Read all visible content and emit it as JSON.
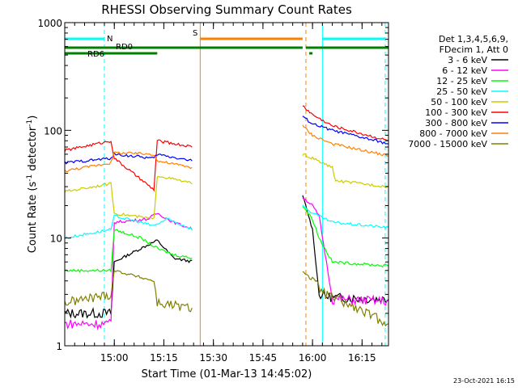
{
  "chart_data": {
    "type": "line",
    "title": "RHESSI Observing Summary Count Rates",
    "xlabel": "Start Time (01-Mar-13 14:45:02)",
    "ylabel": "Count Rate (s",
    "ylabel_sup1": "-1",
    "ylabel_mid": " detector",
    "ylabel_sup2": "-1",
    "ylabel_end": ")",
    "y_scale": "log",
    "ylim": [
      1,
      1000
    ],
    "xlim": [
      "14:45",
      "16:23"
    ],
    "x_ticks": [
      "15:00",
      "15:15",
      "15:30",
      "15:45",
      "16:00",
      "16:15"
    ],
    "y_ticks": [
      "1",
      "10",
      "100",
      "1000"
    ],
    "timestamp": "23-Oct-2021 16:15",
    "legend_header": [
      "Det 1,3,4,5,6,9,",
      "FDecim 1, Att 0"
    ],
    "legend_position": "right",
    "grid": false,
    "series": [
      {
        "name": "3 - 6 keV",
        "color": "#000000",
        "points": [
          [
            "14:45",
            2.0
          ],
          [
            "14:59",
            2.0
          ],
          [
            "15:00",
            6.0
          ],
          [
            "15:08",
            8.0
          ],
          [
            "15:13",
            9.5
          ],
          [
            "15:18",
            6.5
          ],
          [
            "15:24",
            6.0
          ],
          [
            "15:57",
            25.0
          ],
          [
            "16:00",
            12.0
          ],
          [
            "16:02",
            3.0
          ],
          [
            "16:06",
            2.8
          ],
          [
            "16:23",
            2.7
          ]
        ]
      },
      {
        "name": "6 - 12 keV",
        "color": "#ff00ff",
        "points": [
          [
            "14:45",
            1.6
          ],
          [
            "14:59",
            1.6
          ],
          [
            "15:00",
            14.0
          ],
          [
            "15:10",
            15.0
          ],
          [
            "15:13",
            17.0
          ],
          [
            "15:18",
            14.0
          ],
          [
            "15:24",
            12.0
          ],
          [
            "15:57",
            24.0
          ],
          [
            "16:00",
            20.0
          ],
          [
            "16:02",
            16.0
          ],
          [
            "16:06",
            2.7
          ],
          [
            "16:23",
            2.6
          ]
        ]
      },
      {
        "name": "12 - 25 keV",
        "color": "#00ff00",
        "points": [
          [
            "14:45",
            5.0
          ],
          [
            "14:59",
            5.0
          ],
          [
            "15:00",
            12.0
          ],
          [
            "15:08",
            10.0
          ],
          [
            "15:13",
            8.0
          ],
          [
            "15:18",
            7.0
          ],
          [
            "15:24",
            6.5
          ],
          [
            "15:57",
            20.0
          ],
          [
            "16:00",
            15.0
          ],
          [
            "16:02",
            10.0
          ],
          [
            "16:06",
            6.0
          ],
          [
            "16:23",
            5.5
          ]
        ]
      },
      {
        "name": "25 - 50 keV",
        "color": "#00ffff",
        "points": [
          [
            "14:45",
            10.0
          ],
          [
            "14:59",
            12.0
          ],
          [
            "15:00",
            16.0
          ],
          [
            "15:08",
            14.0
          ],
          [
            "15:12",
            13.0
          ],
          [
            "15:16",
            15.0
          ],
          [
            "15:24",
            12.0
          ],
          [
            "15:57",
            20.0
          ],
          [
            "16:00",
            17.0
          ],
          [
            "16:06",
            14.0
          ],
          [
            "16:23",
            12.5
          ]
        ]
      },
      {
        "name": "50 - 100 keV",
        "color": "#cccc00",
        "points": [
          [
            "14:45",
            27.0
          ],
          [
            "14:59",
            32.0
          ],
          [
            "15:00",
            17.0
          ],
          [
            "15:12",
            15.0
          ],
          [
            "15:13",
            38.0
          ],
          [
            "15:24",
            32.0
          ],
          [
            "15:57",
            60.0
          ],
          [
            "16:00",
            55.0
          ],
          [
            "16:06",
            45.0
          ],
          [
            "16:07",
            34.0
          ],
          [
            "16:23",
            30.0
          ]
        ]
      },
      {
        "name": "100 - 300 keV",
        "color": "#ff0000",
        "points": [
          [
            "14:45",
            65.0
          ],
          [
            "14:59",
            80.0
          ],
          [
            "15:00",
            55.0
          ],
          [
            "15:12",
            28.0
          ],
          [
            "15:13",
            80.0
          ],
          [
            "15:24",
            70.0
          ],
          [
            "15:57",
            170.0
          ],
          [
            "16:00",
            140.0
          ],
          [
            "16:06",
            110.0
          ],
          [
            "16:23",
            80.0
          ]
        ]
      },
      {
        "name": "300 - 800 keV",
        "color": "#0000ff",
        "points": [
          [
            "14:45",
            50.0
          ],
          [
            "14:59",
            55.0
          ],
          [
            "15:00",
            60.0
          ],
          [
            "15:12",
            55.0
          ],
          [
            "15:13",
            60.0
          ],
          [
            "15:24",
            52.0
          ],
          [
            "15:57",
            135.0
          ],
          [
            "16:00",
            115.0
          ],
          [
            "16:06",
            100.0
          ],
          [
            "16:23",
            75.0
          ]
        ]
      },
      {
        "name": "800 - 7000 keV",
        "color": "#ff8000",
        "points": [
          [
            "14:45",
            42.0
          ],
          [
            "14:59",
            50.0
          ],
          [
            "15:00",
            62.0
          ],
          [
            "15:12",
            60.0
          ],
          [
            "15:13",
            52.0
          ],
          [
            "15:24",
            45.0
          ],
          [
            "15:57",
            110.0
          ],
          [
            "16:00",
            90.0
          ],
          [
            "16:06",
            75.0
          ],
          [
            "16:23",
            58.0
          ]
        ]
      },
      {
        "name": "7000 - 15000 keV",
        "color": "#808000",
        "points": [
          [
            "14:45",
            2.5
          ],
          [
            "14:59",
            3.0
          ],
          [
            "15:00",
            5.0
          ],
          [
            "15:12",
            4.0
          ],
          [
            "15:13",
            2.5
          ],
          [
            "15:24",
            2.2
          ],
          [
            "15:57",
            5.0
          ],
          [
            "16:00",
            4.0
          ],
          [
            "16:04",
            3.0
          ],
          [
            "16:23",
            1.6
          ]
        ]
      }
    ],
    "markers": {
      "dashed_cyan": [
        "14:57",
        "16:22"
      ],
      "solid_cyan": [
        "14:45",
        "16:03"
      ],
      "solid_orange": [
        "15:26"
      ],
      "dashed_orange": [
        "15:58"
      ]
    },
    "flag_bars": [
      {
        "label": "N",
        "color": "#00ffff",
        "row": 0,
        "segments": [
          [
            "14:45",
            "14:57"
          ],
          [
            "16:03",
            "16:22"
          ]
        ]
      },
      {
        "label": "S",
        "color": "#ff8000",
        "row": 0,
        "segments": [
          [
            "15:26",
            "15:57"
          ]
        ]
      },
      {
        "label": "RD0",
        "color": "#008000",
        "row": 1,
        "segments": [
          [
            "14:45",
            "15:57"
          ],
          [
            "15:58",
            "16:23"
          ]
        ]
      },
      {
        "label": "RD6",
        "color": "#008000",
        "row": 2,
        "segments": [
          [
            "14:45",
            "15:13"
          ],
          [
            "15:59",
            "16:00"
          ]
        ]
      }
    ]
  }
}
